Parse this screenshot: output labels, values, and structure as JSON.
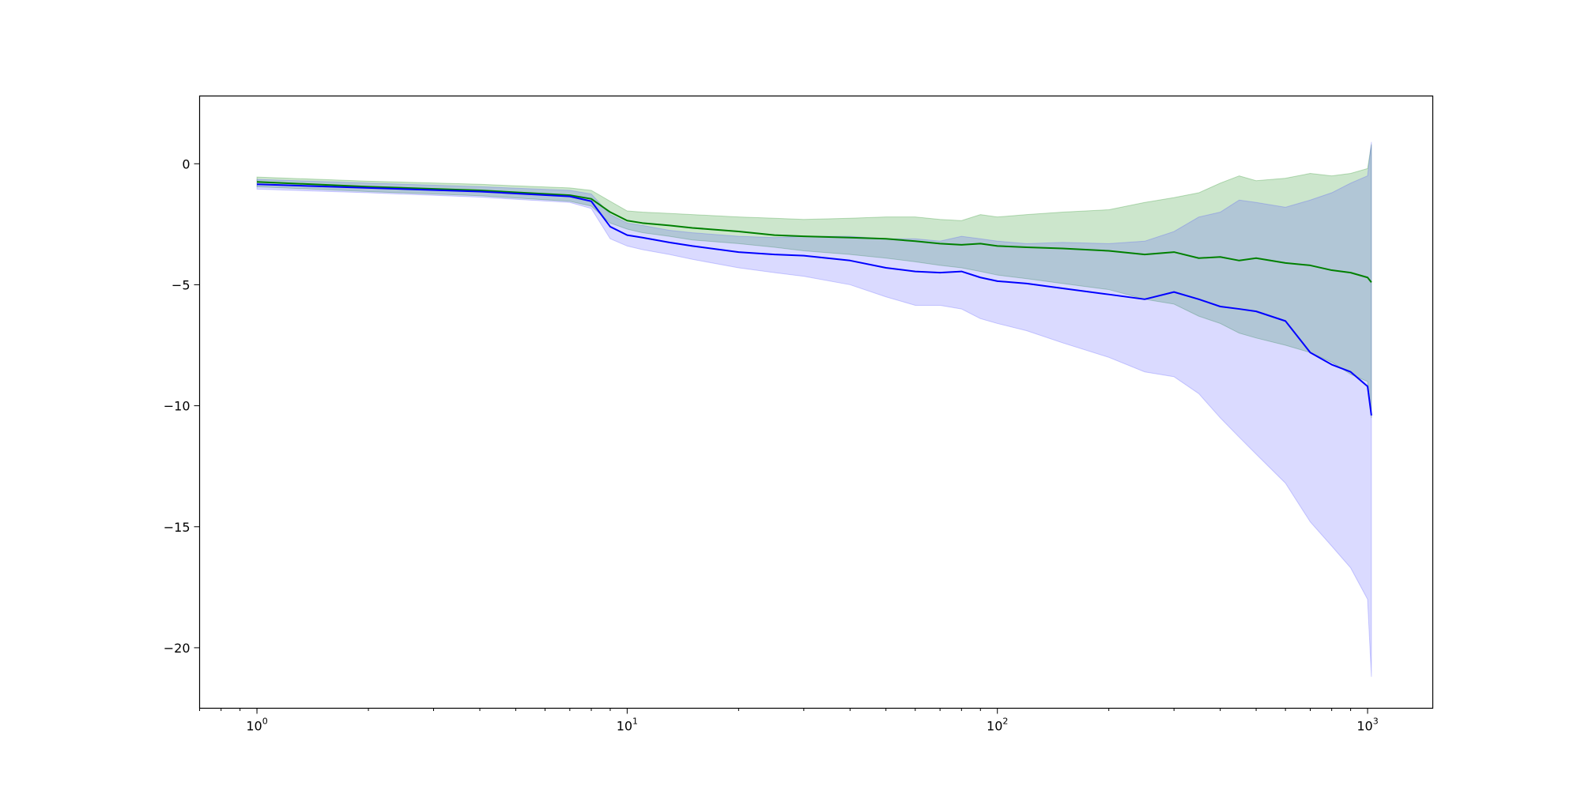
{
  "chart_data": {
    "type": "line",
    "title": "",
    "xlabel": "",
    "ylabel": "",
    "xscale": "log",
    "xlim": [
      0.7,
      1500
    ],
    "ylim": [
      -22.5,
      2.8
    ],
    "grid": false,
    "legend": "none",
    "x_ticks": [
      {
        "value": 1,
        "base": "10",
        "exp": "0"
      },
      {
        "value": 10,
        "base": "10",
        "exp": "1"
      },
      {
        "value": 100,
        "base": "10",
        "exp": "2"
      },
      {
        "value": 1000,
        "base": "10",
        "exp": "3"
      }
    ],
    "y_ticks": [
      {
        "value": 0,
        "label": "0"
      },
      {
        "value": -5,
        "label": "−5"
      },
      {
        "value": -10,
        "label": "−10"
      },
      {
        "value": -15,
        "label": "−15"
      },
      {
        "value": -20,
        "label": "−20"
      }
    ],
    "series": [
      {
        "color": "#008000",
        "band_color": "#008000",
        "points": [
          [
            1,
            -0.75,
            -0.55,
            -0.95
          ],
          [
            2,
            -0.95,
            -0.72,
            -1.15
          ],
          [
            4,
            -1.1,
            -0.85,
            -1.32
          ],
          [
            7,
            -1.3,
            -1.0,
            -1.55
          ],
          [
            8,
            -1.45,
            -1.1,
            -1.75
          ],
          [
            9,
            -2.0,
            -1.55,
            -2.45
          ],
          [
            10,
            -2.35,
            -1.95,
            -2.7
          ],
          [
            11,
            -2.45,
            -2.0,
            -2.85
          ],
          [
            13,
            -2.55,
            -2.05,
            -3.0
          ],
          [
            15,
            -2.65,
            -2.1,
            -3.15
          ],
          [
            20,
            -2.8,
            -2.2,
            -3.3
          ],
          [
            25,
            -2.95,
            -2.25,
            -3.45
          ],
          [
            30,
            -3.0,
            -2.3,
            -3.6
          ],
          [
            40,
            -3.05,
            -2.25,
            -3.75
          ],
          [
            50,
            -3.1,
            -2.2,
            -3.9
          ],
          [
            60,
            -3.2,
            -2.2,
            -4.05
          ],
          [
            70,
            -3.3,
            -2.3,
            -4.2
          ],
          [
            80,
            -3.35,
            -2.35,
            -4.3
          ],
          [
            90,
            -3.3,
            -2.1,
            -4.45
          ],
          [
            100,
            -3.4,
            -2.2,
            -4.6
          ],
          [
            120,
            -3.45,
            -2.1,
            -4.75
          ],
          [
            150,
            -3.5,
            -2.0,
            -4.95
          ],
          [
            200,
            -3.6,
            -1.9,
            -5.2
          ],
          [
            250,
            -3.75,
            -1.6,
            -5.6
          ],
          [
            300,
            -3.65,
            -1.4,
            -5.8
          ],
          [
            350,
            -3.9,
            -1.2,
            -6.3
          ],
          [
            400,
            -3.85,
            -0.8,
            -6.6
          ],
          [
            450,
            -4.0,
            -0.5,
            -7.0
          ],
          [
            500,
            -3.9,
            -0.7,
            -7.2
          ],
          [
            600,
            -4.1,
            -0.6,
            -7.5
          ],
          [
            700,
            -4.2,
            -0.4,
            -7.8
          ],
          [
            800,
            -4.4,
            -0.5,
            -8.2
          ],
          [
            900,
            -4.5,
            -0.4,
            -8.7
          ],
          [
            1000,
            -4.7,
            -0.2,
            -9.0
          ],
          [
            1024,
            -4.9,
            0.8,
            -10.5
          ]
        ]
      },
      {
        "color": "#0000ff",
        "band_color": "#4444ff",
        "points": [
          [
            1,
            -0.85,
            -0.65,
            -1.05
          ],
          [
            2,
            -1.0,
            -0.8,
            -1.2
          ],
          [
            4,
            -1.15,
            -0.95,
            -1.38
          ],
          [
            7,
            -1.35,
            -1.1,
            -1.6
          ],
          [
            8,
            -1.55,
            -1.25,
            -1.85
          ],
          [
            9,
            -2.6,
            -2.1,
            -3.1
          ],
          [
            10,
            -2.95,
            -2.45,
            -3.4
          ],
          [
            11,
            -3.05,
            -2.55,
            -3.55
          ],
          [
            13,
            -3.25,
            -2.75,
            -3.75
          ],
          [
            15,
            -3.4,
            -2.85,
            -3.95
          ],
          [
            20,
            -3.65,
            -3.0,
            -4.3
          ],
          [
            25,
            -3.75,
            -3.05,
            -4.5
          ],
          [
            30,
            -3.8,
            -3.0,
            -4.65
          ],
          [
            40,
            -4.0,
            -3.0,
            -5.0
          ],
          [
            50,
            -4.3,
            -3.1,
            -5.5
          ],
          [
            60,
            -4.45,
            -3.1,
            -5.85
          ],
          [
            70,
            -4.5,
            -3.2,
            -5.85
          ],
          [
            80,
            -4.45,
            -3.0,
            -6.0
          ],
          [
            90,
            -4.7,
            -3.1,
            -6.4
          ],
          [
            100,
            -4.85,
            -3.2,
            -6.6
          ],
          [
            120,
            -4.95,
            -3.3,
            -6.9
          ],
          [
            150,
            -5.15,
            -3.25,
            -7.4
          ],
          [
            200,
            -5.4,
            -3.3,
            -8.0
          ],
          [
            250,
            -5.6,
            -3.2,
            -8.6
          ],
          [
            300,
            -5.3,
            -2.8,
            -8.8
          ],
          [
            350,
            -5.6,
            -2.2,
            -9.5
          ],
          [
            400,
            -5.9,
            -2.0,
            -10.5
          ],
          [
            450,
            -6.0,
            -1.5,
            -11.3
          ],
          [
            500,
            -6.1,
            -1.6,
            -12.0
          ],
          [
            600,
            -6.5,
            -1.8,
            -13.2
          ],
          [
            700,
            -7.8,
            -1.5,
            -14.8
          ],
          [
            800,
            -8.3,
            -1.2,
            -15.8
          ],
          [
            900,
            -8.6,
            -0.8,
            -16.7
          ],
          [
            1000,
            -9.2,
            -0.5,
            -18.0
          ],
          [
            1024,
            -10.4,
            0.9,
            -21.2
          ]
        ]
      }
    ]
  }
}
